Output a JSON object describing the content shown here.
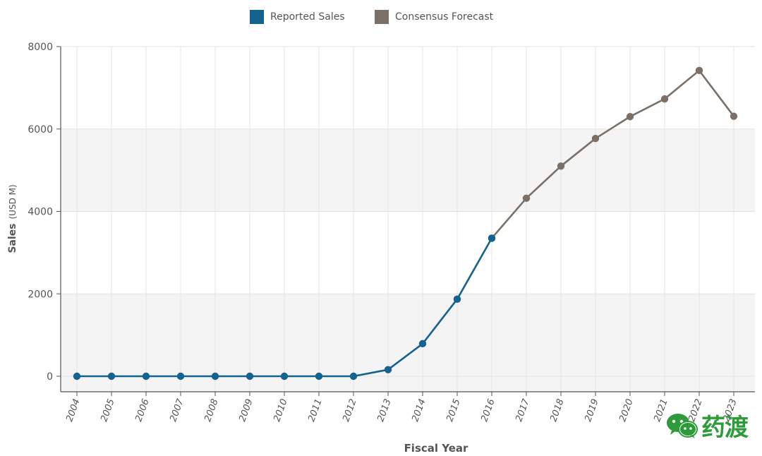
{
  "chart_data": {
    "type": "line",
    "title": "",
    "xlabel": "Fiscal Year",
    "ylabel": "Sales",
    "ylabel_unit": "(USD M)",
    "ylim": [
      0,
      8000
    ],
    "yticks": [
      0,
      2000,
      4000,
      6000,
      8000
    ],
    "legend_position": "top-center",
    "grid": true,
    "categories": [
      "2004",
      "2005",
      "2006",
      "2007",
      "2008",
      "2009",
      "2010",
      "2011",
      "2012",
      "2013",
      "2014",
      "2015",
      "2016",
      "2017",
      "2018",
      "2019",
      "2020",
      "2021",
      "2022",
      "2023"
    ],
    "series": [
      {
        "name": "Reported Sales",
        "color": "#14628f",
        "values": [
          0,
          0,
          0,
          0,
          0,
          0,
          0,
          0,
          0,
          160,
          790,
          1870,
          3350,
          null,
          null,
          null,
          null,
          null,
          null,
          null
        ]
      },
      {
        "name": "Consensus Forecast",
        "color": "#7a7067",
        "values": [
          null,
          null,
          null,
          null,
          null,
          null,
          null,
          null,
          null,
          null,
          null,
          null,
          3350,
          4320,
          5100,
          5770,
          6300,
          6730,
          7420,
          6310
        ]
      }
    ]
  },
  "legend": {
    "items": [
      {
        "label": "Reported Sales",
        "color": "#14628f"
      },
      {
        "label": "Consensus Forecast",
        "color": "#7a7067"
      }
    ]
  },
  "watermark": {
    "text": "药渡",
    "icon": "wechat-icon",
    "color": "#2e9b3a"
  }
}
